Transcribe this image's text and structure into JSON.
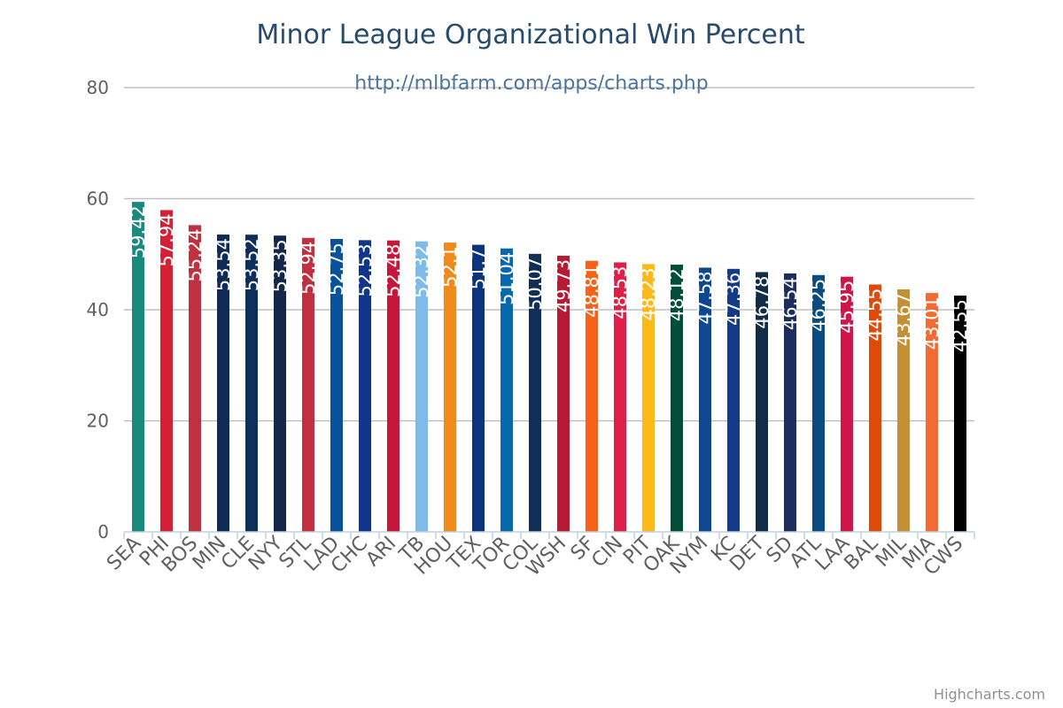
{
  "chart_data": {
    "type": "bar",
    "title": "Minor League Organizational Win Percent",
    "subtitle": "http://mlbfarm.com/apps/charts.php",
    "xlabel": "",
    "ylabel": "",
    "ylim": [
      0,
      80
    ],
    "yticks": [
      0,
      20,
      40,
      60,
      80
    ],
    "grid": true,
    "legend": "none",
    "credits": "Highcharts.com",
    "categories": [
      "SEA",
      "PHI",
      "BOS",
      "MIN",
      "CLE",
      "NYY",
      "STL",
      "LAD",
      "CHC",
      "ARI",
      "TB",
      "HOU",
      "TEX",
      "TOR",
      "COL",
      "WSH",
      "SF",
      "CIN",
      "PIT",
      "OAK",
      "NYM",
      "KC",
      "DET",
      "SD",
      "ATL",
      "LAA",
      "BAL",
      "MIL",
      "MIA",
      "CWS"
    ],
    "values": [
      59.42,
      57.94,
      55.24,
      53.54,
      53.52,
      53.35,
      52.94,
      52.75,
      52.53,
      52.48,
      52.32,
      52.1,
      51.7,
      51.04,
      50.07,
      49.73,
      48.81,
      48.53,
      48.23,
      48.12,
      47.58,
      47.36,
      46.78,
      46.54,
      46.25,
      45.95,
      44.55,
      43.67,
      43.01,
      42.55
    ],
    "labels": [
      "59.42",
      "57.94",
      "55.24",
      "53.54",
      "53.52",
      "53.35",
      "52.94",
      "52.75",
      "52.53",
      "52.48",
      "52.32",
      "52.1",
      "51.7",
      "51.04",
      "50.07",
      "49.73",
      "48.81",
      "48.53",
      "48.23",
      "48.12",
      "47.58",
      "47.36",
      "46.78",
      "46.54",
      "46.25",
      "45.95",
      "44.55",
      "43.67",
      "43.01",
      "42.55"
    ],
    "colors": [
      "#1a8a7e",
      "#d41f35",
      "#c0313f",
      "#0f2a54",
      "#0d2f5c",
      "#14264a",
      "#c0303f",
      "#06539b",
      "#0f358d",
      "#c8163a",
      "#7cbbea",
      "#f08a1a",
      "#0b347e",
      "#0768ad",
      "#0f2f56",
      "#b71a32",
      "#f9601a",
      "#e11e46",
      "#fdb918",
      "#004d39",
      "#0d4890",
      "#143a8a",
      "#122b47",
      "#1c2e60",
      "#0a4b80",
      "#d1154a",
      "#e04a08",
      "#c39036",
      "#f36a33",
      "#000000"
    ]
  }
}
